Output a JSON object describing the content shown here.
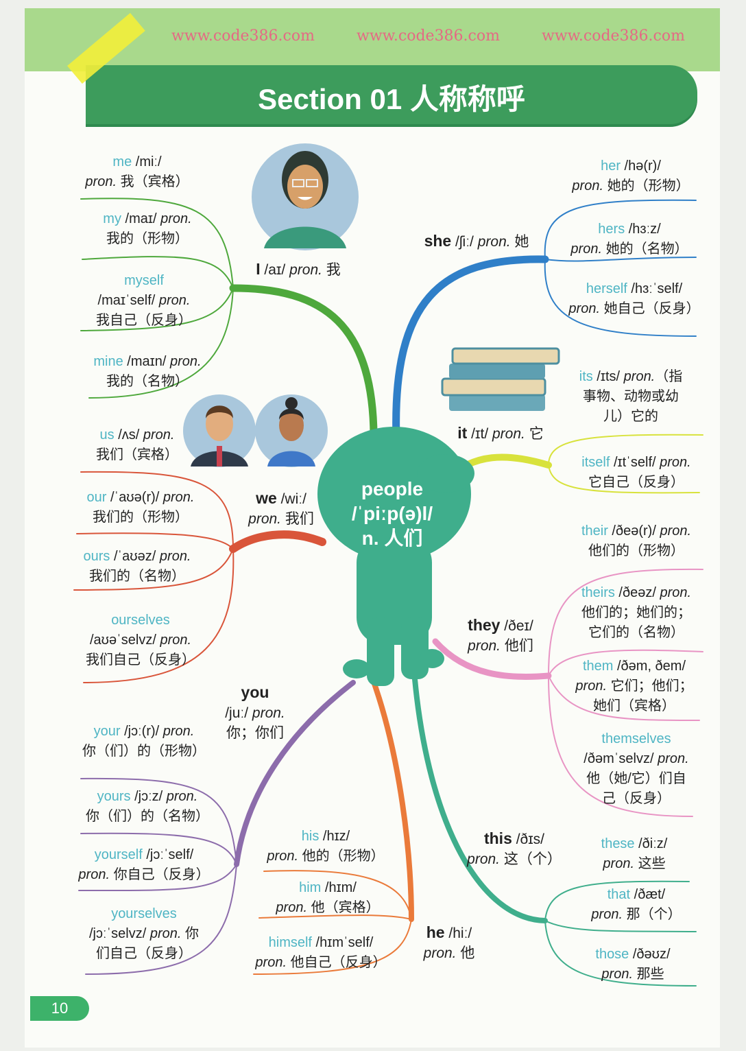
{
  "title": "Section 01 人称称呼",
  "page_number": "10",
  "watermark": "www.code386.com",
  "center": {
    "word": "people",
    "ipa": "/ˈpiːp(ə)l/",
    "meaning": "n. 人们"
  },
  "colors": {
    "I": "#4ea83c",
    "she": "#2f7fc8",
    "it": "#d8e23c",
    "they": "#e894c4",
    "this": "#3fae8c",
    "he": "#ea7a3a",
    "you": "#8c6cab",
    "we": "#d9553a",
    "word": "#4fb5c4",
    "title_bg": "#3d9c5c"
  },
  "hubs": [
    {
      "id": "I",
      "lines": [
        "I /aɪ/ pron. 我"
      ]
    },
    {
      "id": "we",
      "lines": [
        "we /wiː/",
        "pron. 我们"
      ]
    },
    {
      "id": "you",
      "lines": [
        "you",
        "/juː/ pron.",
        "你；你们"
      ]
    },
    {
      "id": "he",
      "lines": [
        "he /hiː/",
        "pron. 他"
      ]
    },
    {
      "id": "this",
      "lines": [
        "this /ðɪs/",
        "pron. 这（个）"
      ]
    },
    {
      "id": "they",
      "lines": [
        "they /ðeɪ/",
        "pron. 他们"
      ]
    },
    {
      "id": "it",
      "lines": [
        "it /ɪt/ pron. 它"
      ]
    },
    {
      "id": "she",
      "lines": [
        "she /ʃiː/ pron. 她"
      ]
    }
  ],
  "leaves": [
    {
      "word": "me",
      "first": " /miː/",
      "more": [
        "pron. 我（宾格）"
      ]
    },
    {
      "word": "my",
      "first": " /maɪ/ pron.",
      "more": [
        "我的（形物）"
      ]
    },
    {
      "word": "myself",
      "first": "",
      "more": [
        "/maɪˈself/ pron.",
        "我自己（反身）"
      ]
    },
    {
      "word": "mine",
      "first": " /maɪn/ pron.",
      "more": [
        "我的（名物）"
      ]
    },
    {
      "word": "us",
      "first": " /ʌs/ pron.",
      "more": [
        "我们（宾格）"
      ]
    },
    {
      "word": "our",
      "first": " /ˈaʊə(r)/ pron.",
      "more": [
        "我们的（形物）"
      ]
    },
    {
      "word": "ours",
      "first": " /ˈaʊəz/ pron.",
      "more": [
        "我们的（名物）"
      ]
    },
    {
      "word": "ourselves",
      "first": "",
      "more": [
        "/aʊəˈselvz/ pron.",
        "我们自己（反身）"
      ]
    },
    {
      "word": "your",
      "first": " /jɔː(r)/ pron.",
      "more": [
        "你（们）的（形物）"
      ]
    },
    {
      "word": "yours",
      "first": " /jɔːz/ pron.",
      "more": [
        "你（们）的（名物）"
      ]
    },
    {
      "word": "yourself",
      "first": " /jɔːˈself/",
      "more": [
        "pron. 你自己（反身）"
      ]
    },
    {
      "word": "yourselves",
      "first": "",
      "more": [
        "/jɔːˈselvz/ pron. 你",
        "们自己（反身）"
      ]
    },
    {
      "word": "his",
      "first": " /hɪz/",
      "more": [
        "pron. 他的（形物）"
      ]
    },
    {
      "word": "him",
      "first": " /hɪm/",
      "more": [
        "pron. 他（宾格）"
      ]
    },
    {
      "word": "himself",
      "first": " /hɪmˈself/",
      "more": [
        "pron. 他自己（反身）"
      ]
    },
    {
      "word": "these",
      "first": " /ðiːz/",
      "more": [
        "pron. 这些"
      ]
    },
    {
      "word": "that",
      "first": " /ðæt/",
      "more": [
        "pron. 那（个）"
      ]
    },
    {
      "word": "those",
      "first": " /ðəʊz/",
      "more": [
        "pron. 那些"
      ]
    },
    {
      "word": "their",
      "first": " /ðeə(r)/ pron.",
      "more": [
        "他们的（形物）"
      ]
    },
    {
      "word": "theirs",
      "first": " /ðeəz/ pron.",
      "more": [
        "他们的；她们的；",
        "它们的（名物）"
      ]
    },
    {
      "word": "them",
      "first": " /ðəm, ðem/",
      "more": [
        "pron. 它们；他们；",
        "她们（宾格）"
      ]
    },
    {
      "word": "themselves",
      "first": "",
      "more": [
        "/ðəmˈselvz/ pron.",
        "他（她/它）们自",
        "己（反身）"
      ]
    },
    {
      "word": "its",
      "first": " /ɪts/ pron.（指",
      "more": [
        "事物、动物或幼",
        "儿）它的"
      ]
    },
    {
      "word": "itself",
      "first": " /ɪtˈself/ pron.",
      "more": [
        "它自己（反身）"
      ]
    },
    {
      "word": "her",
      "first": " /hə(r)/",
      "more": [
        "pron. 她的（形物）"
      ]
    },
    {
      "word": "hers",
      "first": " /hɜːz/",
      "more": [
        "pron. 她的（名物）"
      ]
    },
    {
      "word": "herself",
      "first": " /hɜːˈself/",
      "more": [
        "pron. 她自己（反身）"
      ]
    }
  ]
}
